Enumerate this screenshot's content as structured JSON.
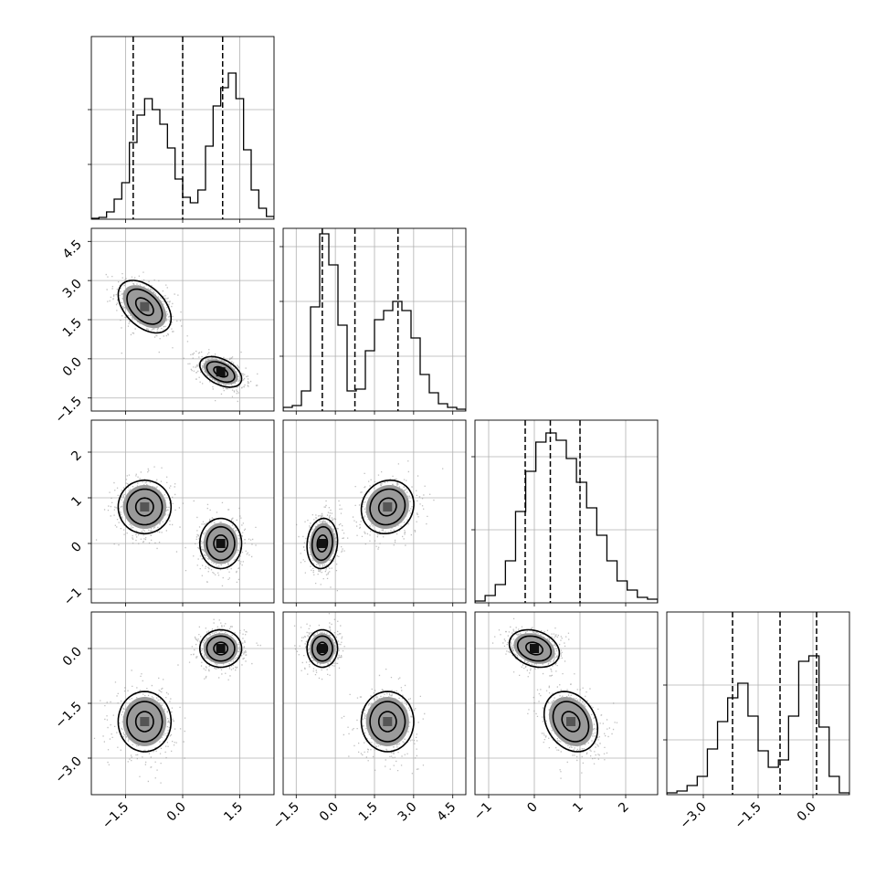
{
  "chart_data": {
    "type": "corner",
    "title": "",
    "grid": true,
    "params": [
      {
        "range": [
          -2.4,
          2.4
        ],
        "ticks": [
          -1.5,
          0.0,
          1.5
        ],
        "tick_labels": [
          "−1.5",
          "0.0",
          "1.5"
        ],
        "quantiles": [
          -1.3,
          0.0,
          1.05
        ],
        "hist_y_grid": [
          0.3,
          0.6
        ],
        "hist_bins": [
          0.005,
          0.01,
          0.04,
          0.11,
          0.2,
          0.42,
          0.57,
          0.66,
          0.6,
          0.52,
          0.39,
          0.22,
          0.12,
          0.09,
          0.16,
          0.4,
          0.62,
          0.72,
          0.8,
          0.66,
          0.38,
          0.16,
          0.06,
          0.015
        ]
      },
      {
        "range": [
          -2.0,
          5.0
        ],
        "ticks": [
          -1.5,
          0.0,
          1.5,
          3.0,
          4.5
        ],
        "tick_labels": [
          "−1.5",
          "0.0",
          "1.5",
          "3.0",
          "4.5"
        ],
        "quantiles": [
          -0.5,
          0.75,
          2.4
        ],
        "hist_y_grid": [
          0.3,
          0.6,
          0.9
        ],
        "hist_bins": [
          0.02,
          0.03,
          0.11,
          0.57,
          0.97,
          0.8,
          0.47,
          0.11,
          0.12,
          0.33,
          0.5,
          0.55,
          0.6,
          0.55,
          0.4,
          0.2,
          0.1,
          0.04,
          0.02,
          0.01
        ]
      },
      {
        "range": [
          -1.3,
          2.7
        ],
        "ticks": [
          -1,
          0,
          1,
          2
        ],
        "tick_labels": [
          "−1",
          "0",
          "1",
          "2"
        ],
        "quantiles": [
          -0.2,
          0.35,
          1.0
        ],
        "hist_y_grid": [
          0.4,
          0.8
        ],
        "hist_bins": [
          0.01,
          0.04,
          0.1,
          0.23,
          0.5,
          0.72,
          0.88,
          0.93,
          0.89,
          0.79,
          0.66,
          0.52,
          0.37,
          0.23,
          0.12,
          0.07,
          0.03,
          0.02
        ]
      },
      {
        "range": [
          -4.0,
          1.0
        ],
        "ticks": [
          -3.0,
          -1.5,
          0.0
        ],
        "tick_labels": [
          "−3.0",
          "−1.5",
          "0.0"
        ],
        "quantiles": [
          -2.2,
          -0.9,
          0.1
        ],
        "hist_y_grid": [
          0.3,
          0.6
        ],
        "hist_bins": [
          0.01,
          0.02,
          0.05,
          0.1,
          0.25,
          0.4,
          0.53,
          0.61,
          0.43,
          0.24,
          0.15,
          0.19,
          0.43,
          0.73,
          0.76,
          0.37,
          0.1,
          0.01
        ]
      }
    ],
    "modes": [
      {
        "mean": [
          -1.0,
          2.0,
          0.8,
          -2.0
        ],
        "sd": [
          0.38,
          0.55,
          0.32,
          0.45
        ]
      },
      {
        "mean": [
          1.0,
          -0.5,
          0.0,
          0.0
        ],
        "sd": [
          0.3,
          0.32,
          0.3,
          0.28
        ]
      }
    ],
    "rho": {
      "0-1": -0.45,
      "0-2": 0.0,
      "0-3": 0.0,
      "1-2": 0.1,
      "1-3": 0.0,
      "2-3": -0.25
    },
    "contour_levels": [
      0.5,
      1.0,
      1.5
    ]
  }
}
